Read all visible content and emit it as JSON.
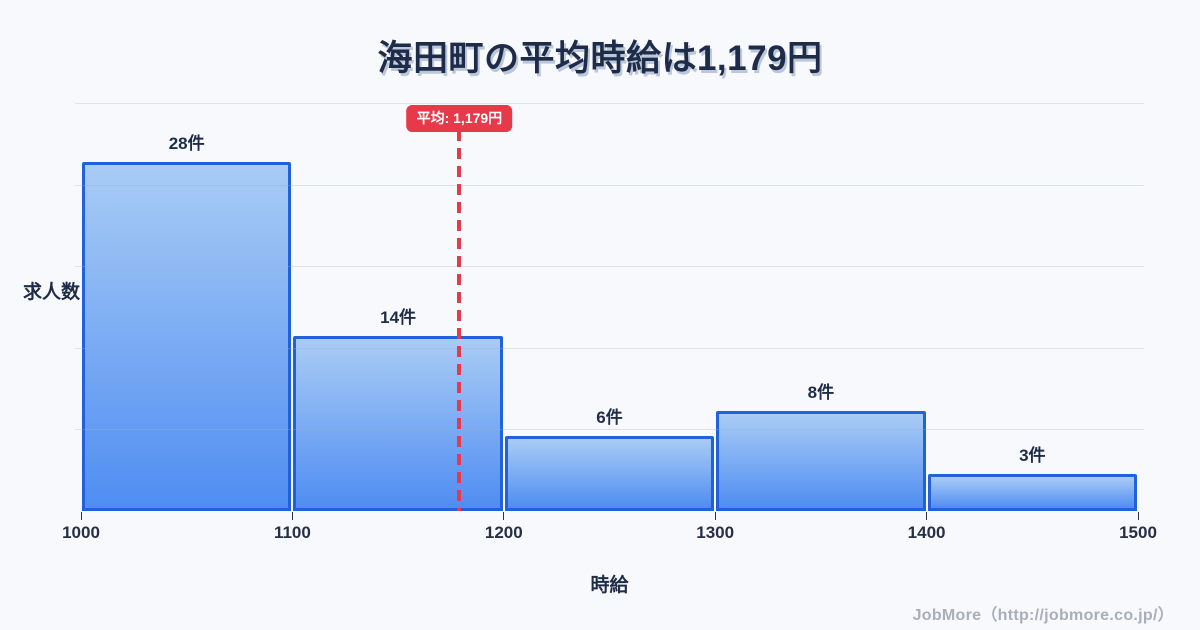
{
  "page": {
    "footer_credit": "JobMore（http://jobmore.co.jp/）"
  },
  "chart_data": {
    "type": "bar",
    "subtype": "histogram",
    "title": "海田町の平均時給は1,179円",
    "xlabel": "時給",
    "ylabel": "求人数",
    "x_range": [
      1000,
      1500
    ],
    "x_ticks": [
      "1000",
      "1100",
      "1200",
      "1300",
      "1400",
      "1500"
    ],
    "bins": [
      {
        "from": 1000,
        "to": 1100,
        "count": 28,
        "label": "28件"
      },
      {
        "from": 1100,
        "to": 1200,
        "count": 14,
        "label": "14件"
      },
      {
        "from": 1200,
        "to": 1300,
        "count": 6,
        "label": "6件"
      },
      {
        "from": 1300,
        "to": 1400,
        "count": 8,
        "label": "8件"
      },
      {
        "from": 1400,
        "to": 1500,
        "count": 3,
        "label": "3件"
      }
    ],
    "mean": 1179,
    "mean_label": "平均: 1,179円",
    "ylim": [
      0,
      32.7
    ],
    "grid": "horizontal",
    "legend": "none",
    "colors": {
      "background": "#f8f9fc",
      "bar_fill_top": "#a9ccf5",
      "bar_fill_bottom": "#4f8df2",
      "bar_border": "#2261dc",
      "mean_line": "#e6394a",
      "mean_badge_bg": "#e6394a",
      "mean_badge_text": "#ffffff",
      "title_text": "#1f2c49",
      "credit_text": "#a9afba"
    }
  }
}
